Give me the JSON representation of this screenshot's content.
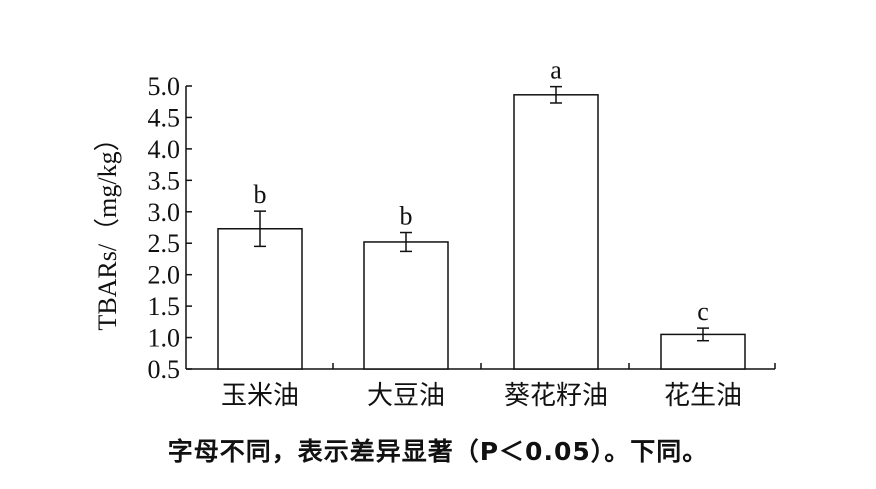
{
  "chart_data": {
    "type": "bar",
    "categories": [
      "玉米油",
      "大豆油",
      "葵花籽油",
      "花生油"
    ],
    "values": [
      2.73,
      2.52,
      4.86,
      1.05
    ],
    "errors": [
      0.28,
      0.15,
      0.13,
      0.1
    ],
    "significance_letters": [
      "b",
      "b",
      "a",
      "c"
    ],
    "ylabel": "TBARs/（mg/kg）",
    "ylim": [
      0.5,
      5.0
    ],
    "yticks": [
      "0.5",
      "1.0",
      "1.5",
      "2.0",
      "2.5",
      "3.0",
      "3.5",
      "4.0",
      "4.5",
      "5.0"
    ],
    "bar_fill": "#ffffff",
    "bar_stroke": "#111111",
    "grid": false,
    "legend": "none"
  },
  "caption": "字母不同，表示差异显著（P＜0.05）。下同。"
}
